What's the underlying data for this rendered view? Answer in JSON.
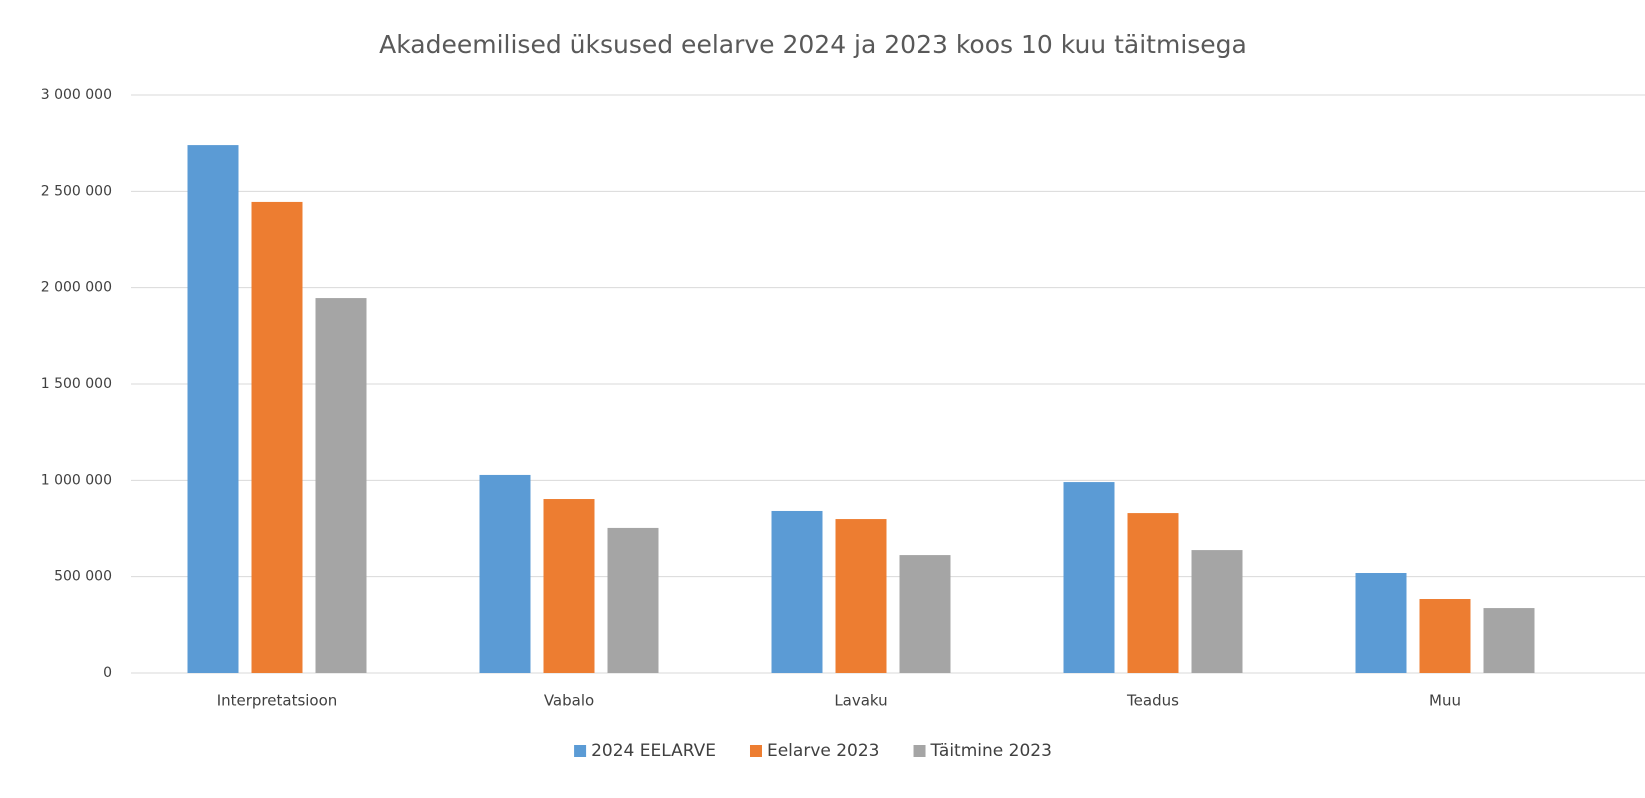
{
  "chart_data": {
    "type": "bar",
    "title": "Akadeemilised üksused eelarve 2024 ja 2023 koos 10 kuu täitmisega",
    "categories": [
      "Interpretatsioon",
      "Vabalo",
      "Lavaku",
      "Teadus",
      "Muu"
    ],
    "series": [
      {
        "name": "2024 EELARVE",
        "color": "#5b9bd5",
        "values": [
          2740000,
          1028000,
          841000,
          991000,
          519000
        ]
      },
      {
        "name": "Eelarve 2023",
        "color": "#ed7d31",
        "values": [
          2445000,
          903000,
          799000,
          830000,
          384000
        ]
      },
      {
        "name": "Täitmine 2023",
        "color": "#a5a5a5",
        "values": [
          1946000,
          753000,
          612000,
          638000,
          337000
        ]
      }
    ],
    "ylim": [
      0,
      3000000
    ],
    "yticks": [
      0,
      {
        "value": 500000,
        "label": "500 000"
      },
      {
        "value": 1000000,
        "label": "1 000 000"
      },
      {
        "value": 1500000,
        "label": "1 500 000"
      },
      {
        "value": 2000000,
        "label": "2 000 000"
      },
      {
        "value": 2500000,
        "label": "2 500 000"
      },
      {
        "value": 3000000,
        "label": "3 000 000"
      }
    ],
    "grid": true,
    "legend": "bottom"
  }
}
